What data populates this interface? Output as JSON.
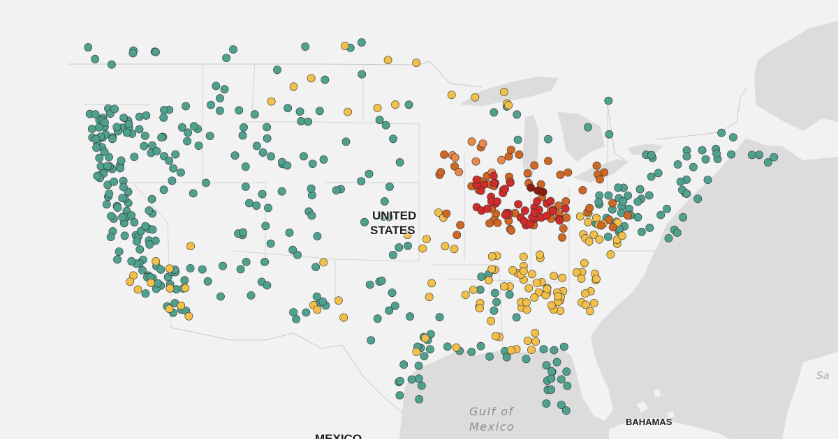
{
  "map": {
    "labels": {
      "us_line1": "UNITED",
      "us_line2": "STATES",
      "mexico": "MEXICO",
      "bahamas": "BAHAMAS",
      "gulf_line1": "Gulf of",
      "gulf_line2": "Mexico",
      "edge_fragment": "Sa"
    },
    "colors": {
      "water": "#dcdcdc",
      "land": "#f2f2f2",
      "border": "#c9c9c9",
      "low": "#4fa18f",
      "moderate": "#f2bf4a",
      "elevated": "#e8894b",
      "high": "#cf6624",
      "very_high": "#d12a2a",
      "extreme": "#8a1d0d"
    },
    "point_clusters": [
      {
        "category": "low",
        "lon": [
          -124.3,
          -120.5
        ],
        "lat": [
          46.0,
          48.8
        ],
        "n": 30
      },
      {
        "category": "low",
        "lon": [
          -124.3,
          -121.5
        ],
        "lat": [
          42.0,
          46.0
        ],
        "n": 24
      },
      {
        "category": "low",
        "lon": [
          -123.8,
          -119.5
        ],
        "lat": [
          36.5,
          42.0
        ],
        "n": 38
      },
      {
        "category": "low",
        "lon": [
          -121.5,
          -116.5
        ],
        "lat": [
          33.0,
          36.5
        ],
        "n": 24
      },
      {
        "category": "low",
        "lon": [
          -120.5,
          -114.5
        ],
        "lat": [
          45.5,
          48.8
        ],
        "n": 18
      },
      {
        "category": "low",
        "lon": [
          -121.0,
          -113.0
        ],
        "lat": [
          42.0,
          45.5
        ],
        "n": 12
      },
      {
        "category": "low",
        "lon": [
          -114.0,
          -104.0
        ],
        "lat": [
          44.0,
          48.8
        ],
        "n": 20
      },
      {
        "category": "low",
        "lon": [
          -113.0,
          -104.0
        ],
        "lat": [
          38.0,
          44.0
        ],
        "n": 20
      },
      {
        "category": "low",
        "lon": [
          -116.0,
          -103.0
        ],
        "lat": [
          32.0,
          38.0
        ],
        "n": 20
      },
      {
        "category": "low",
        "lon": [
          -104.0,
          -95.0
        ],
        "lat": [
          40.0,
          48.8
        ],
        "n": 14
      },
      {
        "category": "low",
        "lon": [
          -100.0,
          -93.0
        ],
        "lat": [
          29.0,
          40.0
        ],
        "n": 18
      },
      {
        "category": "low",
        "lon": [
          -98.5,
          -94.5
        ],
        "lat": [
          26.0,
          29.5
        ],
        "n": 9
      },
      {
        "category": "low",
        "lon": [
          -95.5,
          -80.0
        ],
        "lat": [
          29.3,
          30.8
        ],
        "n": 16
      },
      {
        "category": "low",
        "lon": [
          -82.8,
          -80.0
        ],
        "lat": [
          25.5,
          29.5
        ],
        "n": 14
      },
      {
        "category": "low",
        "lon": [
          -89.5,
          -84.0
        ],
        "lat": [
          32.0,
          37.5
        ],
        "n": 8
      },
      {
        "category": "low",
        "lon": [
          -78.5,
          -70.0
        ],
        "lat": [
          38.0,
          42.8
        ],
        "n": 34
      },
      {
        "category": "low",
        "lon": [
          -74.0,
          -67.5
        ],
        "lat": [
          42.0,
          46.0
        ],
        "n": 18
      },
      {
        "category": "low",
        "lon": [
          -67.5,
          -60.5
        ],
        "lat": [
          44.5,
          47.5
        ],
        "n": 10
      },
      {
        "category": "low",
        "lon": [
          -90.0,
          -77.0
        ],
        "lat": [
          46.0,
          50.0
        ],
        "n": 8
      },
      {
        "category": "low",
        "lon": [
          -124.0,
          -96.0
        ],
        "lat": [
          49.0,
          53.5
        ],
        "n": 18
      },
      {
        "category": "moderate",
        "lon": [
          -86.5,
          -78.0
        ],
        "lat": [
          33.0,
          37.5
        ],
        "n": 48
      },
      {
        "category": "moderate",
        "lon": [
          -91.0,
          -86.5
        ],
        "lat": [
          32.0,
          37.5
        ],
        "n": 12
      },
      {
        "category": "moderate",
        "lon": [
          -80.0,
          -75.0
        ],
        "lat": [
          37.5,
          41.0
        ],
        "n": 16
      },
      {
        "category": "moderate",
        "lon": [
          -90.0,
          -82.0
        ],
        "lat": [
          29.8,
          31.5
        ],
        "n": 8
      },
      {
        "category": "moderate",
        "lon": [
          -122.5,
          -116.0
        ],
        "lat": [
          32.5,
          38.5
        ],
        "n": 12
      },
      {
        "category": "moderate",
        "lon": [
          -97.0,
          -91.0
        ],
        "lat": [
          29.5,
          40.5
        ],
        "n": 12
      },
      {
        "category": "moderate",
        "lon": [
          -108.0,
          -86.0
        ],
        "lat": [
          47.0,
          53.5
        ],
        "n": 14
      },
      {
        "category": "moderate",
        "lon": [
          -106.0,
          -102.0
        ],
        "lat": [
          31.0,
          40.5
        ],
        "n": 5
      },
      {
        "category": "high",
        "lon": [
          -93.0,
          -80.0
        ],
        "lat": [
          38.5,
          45.5
        ],
        "n": 46
      },
      {
        "category": "high",
        "lon": [
          -80.0,
          -74.5
        ],
        "lat": [
          39.5,
          44.5
        ],
        "n": 12
      },
      {
        "category": "elevated",
        "lon": [
          -93.0,
          -86.5
        ],
        "lat": [
          43.5,
          46.0
        ],
        "n": 8
      },
      {
        "category": "very_high",
        "lon": [
          -89.5,
          -86.2
        ],
        "lat": [
          40.5,
          43.5
        ],
        "n": 18
      },
      {
        "category": "very_high",
        "lon": [
          -87.0,
          -83.5
        ],
        "lat": [
          39.5,
          41.5
        ],
        "n": 16
      },
      {
        "category": "very_high",
        "lon": [
          -83.8,
          -81.0
        ],
        "lat": [
          40.0,
          41.8
        ],
        "n": 10
      },
      {
        "category": "extreme",
        "lon": [
          -84.5,
          -83.0
        ],
        "lat": [
          41.8,
          42.8
        ],
        "n": 3
      }
    ]
  }
}
